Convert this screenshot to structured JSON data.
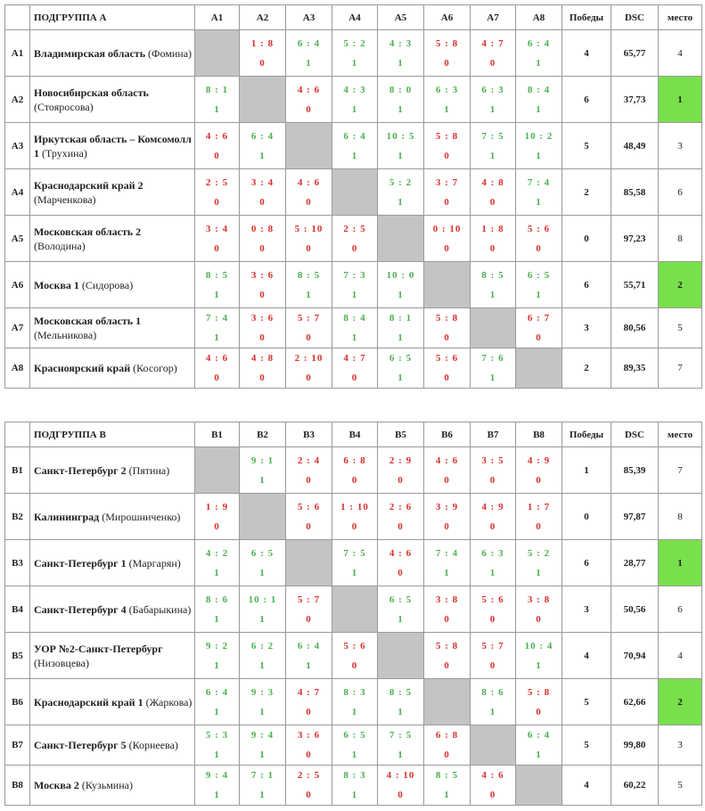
{
  "tables": [
    {
      "header": {
        "subgroup": "ПОДГРУППА А",
        "columns": [
          "A1",
          "A2",
          "A3",
          "A4",
          "A5",
          "A6",
          "A7",
          "A8"
        ],
        "wins": "Победы",
        "dsc": "DSC",
        "place": "место"
      },
      "rows": [
        {
          "code": "A1",
          "name": "Владимирская область",
          "coach": "(Фомина)",
          "matches": [
            null,
            {
              "score": "1 : 8",
              "result": 0
            },
            {
              "score": "6 : 4",
              "result": 1
            },
            {
              "score": "5 : 2",
              "result": 1
            },
            {
              "score": "4 : 3",
              "result": 1
            },
            {
              "score": "5 : 8",
              "result": 0
            },
            {
              "score": "4 : 7",
              "result": 0
            },
            {
              "score": "6 : 4",
              "result": 1
            }
          ],
          "wins": 4,
          "dsc": "65,77",
          "place": 4,
          "highlight": false
        },
        {
          "code": "A2",
          "name": "Новосибирская область",
          "coach": "(Стояросова)",
          "matches": [
            {
              "score": "8 : 1",
              "result": 1
            },
            null,
            {
              "score": "4 : 6",
              "result": 0
            },
            {
              "score": "4 : 3",
              "result": 1
            },
            {
              "score": "8 : 0",
              "result": 1
            },
            {
              "score": "6 : 3",
              "result": 1
            },
            {
              "score": "6 : 3",
              "result": 1
            },
            {
              "score": "8 : 4",
              "result": 1
            }
          ],
          "wins": 6,
          "dsc": "37,73",
          "place": 1,
          "highlight": true
        },
        {
          "code": "A3",
          "name": "Иркутская область – Комсомолл 1",
          "coach": "(Трухина)",
          "matches": [
            {
              "score": "4 : 6",
              "result": 0
            },
            {
              "score": "6 : 4",
              "result": 1
            },
            null,
            {
              "score": "6 : 4",
              "result": 1
            },
            {
              "score": "10 : 5",
              "result": 1
            },
            {
              "score": "5 : 8",
              "result": 0
            },
            {
              "score": "7 : 5",
              "result": 1
            },
            {
              "score": "10 : 2",
              "result": 1
            }
          ],
          "wins": 5,
          "dsc": "48,49",
          "place": 3,
          "highlight": false
        },
        {
          "code": "A4",
          "name": "Краснодарский край 2",
          "coach": "(Марченкова)",
          "matches": [
            {
              "score": "2 : 5",
              "result": 0
            },
            {
              "score": "3 : 4",
              "result": 0
            },
            {
              "score": "4 : 6",
              "result": 0
            },
            null,
            {
              "score": "5 : 2",
              "result": 1
            },
            {
              "score": "3 : 7",
              "result": 0
            },
            {
              "score": "4 : 8",
              "result": 0
            },
            {
              "score": "7 : 4",
              "result": 1
            }
          ],
          "wins": 2,
          "dsc": "85,58",
          "place": 6,
          "highlight": false
        },
        {
          "code": "A5",
          "name": "Московская область 2",
          "coach": "(Володина)",
          "matches": [
            {
              "score": "3 : 4",
              "result": 0
            },
            {
              "score": "0 : 8",
              "result": 0
            },
            {
              "score": "5 : 10",
              "result": 0
            },
            {
              "score": "2 : 5",
              "result": 0
            },
            null,
            {
              "score": "0 : 10",
              "result": 0
            },
            {
              "score": "1 : 8",
              "result": 0
            },
            {
              "score": "5 : 6",
              "result": 0
            }
          ],
          "wins": 0,
          "dsc": "97,23",
          "place": 8,
          "highlight": false
        },
        {
          "code": "A6",
          "name": "Москва 1",
          "coach": "(Сидорова)",
          "matches": [
            {
              "score": "8 : 5",
              "result": 1
            },
            {
              "score": "3 : 6",
              "result": 0
            },
            {
              "score": "8 : 5",
              "result": 1
            },
            {
              "score": "7 : 3",
              "result": 1
            },
            {
              "score": "10 : 0",
              "result": 1
            },
            null,
            {
              "score": "8 : 5",
              "result": 1
            },
            {
              "score": "6 : 5",
              "result": 1
            }
          ],
          "wins": 6,
          "dsc": "55,71",
          "place": 2,
          "highlight": true
        },
        {
          "code": "A7",
          "name": "Московская область 1",
          "coach": "(Мельникова)",
          "matches": [
            {
              "score": "7 : 4",
              "result": 1
            },
            {
              "score": "3 : 6",
              "result": 0
            },
            {
              "score": "5 : 7",
              "result": 0
            },
            {
              "score": "8 : 4",
              "result": 1
            },
            {
              "score": "8 : 1",
              "result": 1
            },
            {
              "score": "5 : 8",
              "result": 0
            },
            null,
            {
              "score": "6 : 7",
              "result": 0
            }
          ],
          "wins": 3,
          "dsc": "80,56",
          "place": 5,
          "highlight": false
        },
        {
          "code": "A8",
          "name": "Красноярский край",
          "coach": "(Косогор)",
          "matches": [
            {
              "score": "4 : 6",
              "result": 0
            },
            {
              "score": "4 : 8",
              "result": 0
            },
            {
              "score": "2 : 10",
              "result": 0
            },
            {
              "score": "4 : 7",
              "result": 0
            },
            {
              "score": "6 : 5",
              "result": 1
            },
            {
              "score": "5 : 6",
              "result": 0
            },
            {
              "score": "7 : 6",
              "result": 1
            },
            null
          ],
          "wins": 2,
          "dsc": "89,35",
          "place": 7,
          "highlight": false
        }
      ]
    },
    {
      "header": {
        "subgroup": "ПОДГРУППА В",
        "columns": [
          "B1",
          "B2",
          "B3",
          "B4",
          "B5",
          "B6",
          "B7",
          "B8"
        ],
        "wins": "Победы",
        "dsc": "DSC",
        "place": "место"
      },
      "rows": [
        {
          "code": "B1",
          "name": "Санкт-Петербург 2",
          "coach": "(Пятина)",
          "matches": [
            null,
            {
              "score": "9 : 1",
              "result": 1
            },
            {
              "score": "2 : 4",
              "result": 0
            },
            {
              "score": "6 : 8",
              "result": 0
            },
            {
              "score": "2 : 9",
              "result": 0
            },
            {
              "score": "4 : 6",
              "result": 0
            },
            {
              "score": "3 : 5",
              "result": 0
            },
            {
              "score": "4 : 9",
              "result": 0
            }
          ],
          "wins": 1,
          "dsc": "85,39",
          "place": 7,
          "highlight": false
        },
        {
          "code": "B2",
          "name": "Калининград",
          "coach": "(Мирошниченко)",
          "matches": [
            {
              "score": "1 : 9",
              "result": 0
            },
            null,
            {
              "score": "5 : 6",
              "result": 0
            },
            {
              "score": "1 : 10",
              "result": 0
            },
            {
              "score": "2 : 6",
              "result": 0
            },
            {
              "score": "3 : 9",
              "result": 0
            },
            {
              "score": "4 : 9",
              "result": 0
            },
            {
              "score": "1 : 7",
              "result": 0
            }
          ],
          "wins": 0,
          "dsc": "97,87",
          "place": 8,
          "highlight": false
        },
        {
          "code": "B3",
          "name": "Санкт-Петербург 1",
          "coach": "(Маргарян)",
          "matches": [
            {
              "score": "4 : 2",
              "result": 1
            },
            {
              "score": "6 : 5",
              "result": 1
            },
            null,
            {
              "score": "7 : 5",
              "result": 1
            },
            {
              "score": "4 : 6",
              "result": 0
            },
            {
              "score": "7 : 4",
              "result": 1
            },
            {
              "score": "6 : 3",
              "result": 1
            },
            {
              "score": "5 : 2",
              "result": 1
            }
          ],
          "wins": 6,
          "dsc": "28,77",
          "place": 1,
          "highlight": true
        },
        {
          "code": "B4",
          "name": "Санкт-Петербург 4",
          "coach": "(Бабарыкина)",
          "matches": [
            {
              "score": "8 : 6",
              "result": 1
            },
            {
              "score": "10 : 1",
              "result": 1
            },
            {
              "score": "5 : 7",
              "result": 0
            },
            null,
            {
              "score": "6 : 5",
              "result": 1
            },
            {
              "score": "3 : 8",
              "result": 0
            },
            {
              "score": "5 : 6",
              "result": 0
            },
            {
              "score": "3 : 8",
              "result": 0
            }
          ],
          "wins": 3,
          "dsc": "50,56",
          "place": 6,
          "highlight": false
        },
        {
          "code": "B5",
          "name": "УОР №2-Санкт-Петербург",
          "coach": "(Низовцева)",
          "matches": [
            {
              "score": "9 : 2",
              "result": 1
            },
            {
              "score": "6 : 2",
              "result": 1
            },
            {
              "score": "6 : 4",
              "result": 1
            },
            {
              "score": "5 : 6",
              "result": 0
            },
            null,
            {
              "score": "5 : 8",
              "result": 0
            },
            {
              "score": "5 : 7",
              "result": 0
            },
            {
              "score": "10 : 4",
              "result": 1
            }
          ],
          "wins": 4,
          "dsc": "70,94",
          "place": 4,
          "highlight": false
        },
        {
          "code": "B6",
          "name": "Краснодарский край 1",
          "coach": "(Жаркова)",
          "matches": [
            {
              "score": "6 : 4",
              "result": 1
            },
            {
              "score": "9 : 3",
              "result": 1
            },
            {
              "score": "4 : 7",
              "result": 0
            },
            {
              "score": "8 : 3",
              "result": 1
            },
            {
              "score": "8 : 5",
              "result": 1
            },
            null,
            {
              "score": "8 : 6",
              "result": 1
            },
            {
              "score": "5 : 8",
              "result": 0
            }
          ],
          "wins": 5,
          "dsc": "62,66",
          "place": 2,
          "highlight": true
        },
        {
          "code": "B7",
          "name": "Санкт-Петербург 5",
          "coach": "(Корнеева)",
          "matches": [
            {
              "score": "5 : 3",
              "result": 1
            },
            {
              "score": "9 : 4",
              "result": 1
            },
            {
              "score": "3 : 6",
              "result": 0
            },
            {
              "score": "6 : 5",
              "result": 1
            },
            {
              "score": "7 : 5",
              "result": 1
            },
            {
              "score": "6 : 8",
              "result": 0
            },
            null,
            {
              "score": "6 : 4",
              "result": 1
            }
          ],
          "wins": 5,
          "dsc": "99,80",
          "place": 3,
          "highlight": false
        },
        {
          "code": "B8",
          "name": "Москва 2",
          "coach": "(Кузьмина)",
          "matches": [
            {
              "score": "9 : 4",
              "result": 1
            },
            {
              "score": "7 : 1",
              "result": 1
            },
            {
              "score": "2 : 5",
              "result": 0
            },
            {
              "score": "8 : 3",
              "result": 1
            },
            {
              "score": "4 : 10",
              "result": 0
            },
            {
              "score": "8 : 5",
              "result": 1
            },
            {
              "score": "4 : 6",
              "result": 0
            },
            null
          ],
          "wins": 4,
          "dsc": "60,22",
          "place": 5,
          "highlight": false
        }
      ]
    }
  ]
}
